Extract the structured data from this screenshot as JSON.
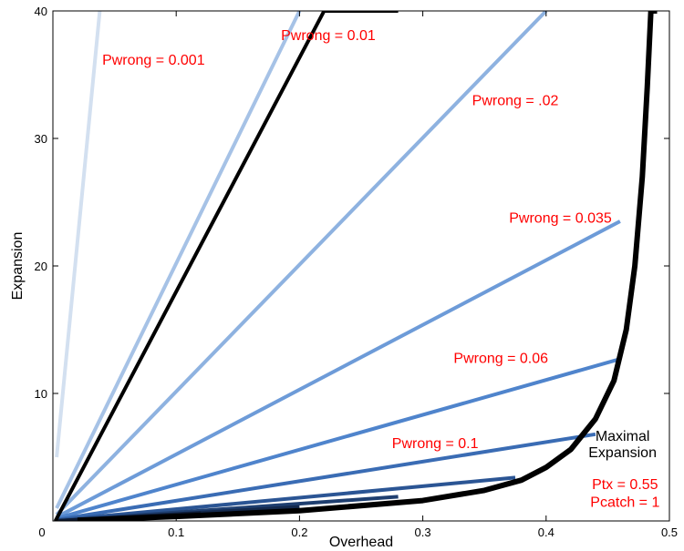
{
  "chart_data": {
    "type": "line",
    "title": "",
    "xlabel": "Overhead",
    "ylabel": "Expansion",
    "xlim": [
      0,
      0.5
    ],
    "ylim": [
      0,
      40
    ],
    "xticks": [
      0,
      0.1,
      0.2,
      0.3,
      0.4,
      0.5
    ],
    "xtick_labels": [
      "0",
      "0.1",
      "0.2",
      "0.3",
      "0.4",
      "0.5"
    ],
    "yticks": [
      10,
      20,
      30,
      40
    ],
    "ytick_labels": [
      "10",
      "20",
      "30",
      "40"
    ],
    "grid": false,
    "series": [
      {
        "label": "Pwrong = 0.001",
        "color": "#d3e0f0",
        "x": [
          0.003,
          0.038
        ],
        "y": [
          5.0,
          40.0
        ]
      },
      {
        "label": "Pwrong = 0.01",
        "color": "#a6c2e6",
        "x": [
          0.003,
          0.2
        ],
        "y": [
          1.0,
          40.0
        ]
      },
      {
        "label": "Pwrong = .02",
        "color": "#8eb2e0",
        "x": [
          0.003,
          0.4
        ],
        "y": [
          0.5,
          40.0
        ]
      },
      {
        "label": "Pwrong = 0.035",
        "color": "#6d9bd8",
        "x": [
          0.003,
          0.46
        ],
        "y": [
          0.3,
          23.5
        ]
      },
      {
        "label": "Pwrong = 0.06",
        "color": "#4f84cc",
        "x": [
          0.003,
          0.46
        ],
        "y": [
          0.2,
          12.7
        ]
      },
      {
        "label": "Pwrong = 0.1",
        "color": "#3a6cb4",
        "x": [
          0.003,
          0.44
        ],
        "y": [
          0.1,
          6.8
        ]
      },
      {
        "label": "",
        "color": "#2b5594",
        "x": [
          0.003,
          0.375
        ],
        "y": [
          0.05,
          3.4
        ]
      },
      {
        "label": "",
        "color": "#1f3f70",
        "x": [
          0.003,
          0.28
        ],
        "y": [
          0.0,
          1.9
        ]
      },
      {
        "label": "",
        "color": "#14294d",
        "x": [
          0.003,
          0.2
        ],
        "y": [
          0.0,
          1.1
        ]
      },
      {
        "label": "",
        "color": "#0d1a33",
        "x": [
          0.003,
          0.12
        ],
        "y": [
          0.0,
          0.6
        ]
      },
      {
        "label": "",
        "color": "#000000",
        "x": [
          0.002,
          0.22,
          0.28
        ],
        "y": [
          0.0,
          40.0,
          40.0
        ]
      }
    ],
    "curve": {
      "label": "Maximal Expansion",
      "color": "#000000",
      "x": [
        0.02,
        0.1,
        0.2,
        0.3,
        0.35,
        0.38,
        0.4,
        0.42,
        0.44,
        0.455,
        0.465,
        0.472,
        0.478,
        0.482,
        0.485,
        0.49
      ],
      "y": [
        0.05,
        0.35,
        0.8,
        1.6,
        2.4,
        3.2,
        4.2,
        5.6,
        8.0,
        11.0,
        15.0,
        20.0,
        27.0,
        34.0,
        40.0,
        40.0
      ]
    },
    "annotations": [
      {
        "text": "Pwrong = 0.001",
        "color": "#ff0000"
      },
      {
        "text": "Pwrong = 0.01",
        "color": "#ff0000"
      },
      {
        "text": "Pwrong = .02",
        "color": "#ff0000"
      },
      {
        "text": "Pwrong = 0.035",
        "color": "#ff0000"
      },
      {
        "text": "Pwrong = 0.06",
        "color": "#ff0000"
      },
      {
        "text": "Pwrong = 0.1",
        "color": "#ff0000"
      },
      {
        "text": "Maximal",
        "color": "#000000"
      },
      {
        "text": "Expansion",
        "color": "#000000"
      },
      {
        "text": "Ptx = 0.55",
        "color": "#ff0000"
      },
      {
        "text": "Pcatch = 1",
        "color": "#ff0000"
      }
    ]
  }
}
